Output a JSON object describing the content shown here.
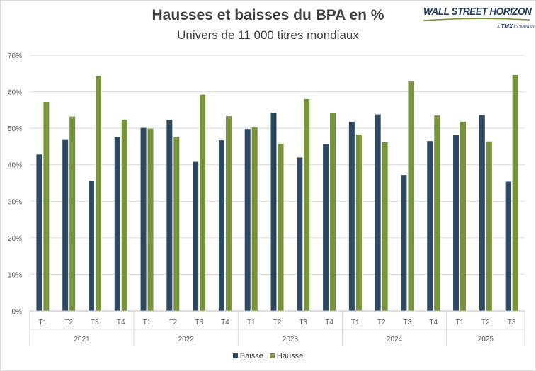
{
  "chart_data": {
    "type": "bar",
    "title": "Hausses et baisses du BPA en %",
    "subtitle": "Univers de 11 000 titres mondiaux",
    "groups": [
      {
        "year": "2021",
        "quarters": [
          "T1",
          "T2",
          "T3",
          "T4"
        ]
      },
      {
        "year": "2022",
        "quarters": [
          "T1",
          "T2",
          "T3",
          "T4"
        ]
      },
      {
        "year": "2023",
        "quarters": [
          "T1",
          "T2",
          "T3",
          "T4"
        ]
      },
      {
        "year": "2024",
        "quarters": [
          "T1",
          "T2",
          "T3",
          "T4"
        ]
      },
      {
        "year": "2025",
        "quarters": [
          "T1",
          "T2",
          "T3"
        ]
      }
    ],
    "series": [
      {
        "name": "Baisse",
        "color": "#2e4a62",
        "values": [
          42.8,
          46.8,
          35.6,
          47.6,
          50.1,
          52.3,
          40.8,
          46.7,
          49.8,
          54.2,
          42.0,
          45.7,
          51.7,
          53.8,
          37.2,
          46.5,
          48.2,
          53.6,
          35.4
        ]
      },
      {
        "name": "Hausse",
        "color": "#77933c",
        "values": [
          57.2,
          53.2,
          64.4,
          52.4,
          49.9,
          47.7,
          59.2,
          53.3,
          50.2,
          45.8,
          58.0,
          54.1,
          48.3,
          46.2,
          62.8,
          53.5,
          51.8,
          46.4,
          64.6
        ]
      }
    ],
    "yticks": [
      "0%",
      "10%",
      "20%",
      "30%",
      "40%",
      "50%",
      "60%",
      "70%"
    ],
    "ylim": [
      0,
      70
    ],
    "grid": true,
    "legend_position": "bottom"
  },
  "logo": {
    "main": "WALL STREET HORIZON",
    "sub_prefix": "A",
    "sub_brand": "TMX",
    "sub_suffix": "COMPANY"
  }
}
